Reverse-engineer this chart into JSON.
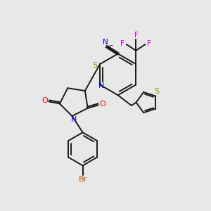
{
  "background_color": "#e8e8e8",
  "bond_color": "#1a1a1a",
  "bond_width": 1.4,
  "colors": {
    "N": "#0000dd",
    "O": "#ff0000",
    "S_pyridine": "#888800",
    "S_thiophene": "#999900",
    "F": "#cc00cc",
    "Br": "#bb5500",
    "C": "#1a1a1a",
    "CN_N": "#0000bb"
  },
  "figsize": [
    3.0,
    3.0
  ],
  "dpi": 100,
  "xlim": [
    0,
    10
  ],
  "ylim": [
    0,
    10
  ]
}
